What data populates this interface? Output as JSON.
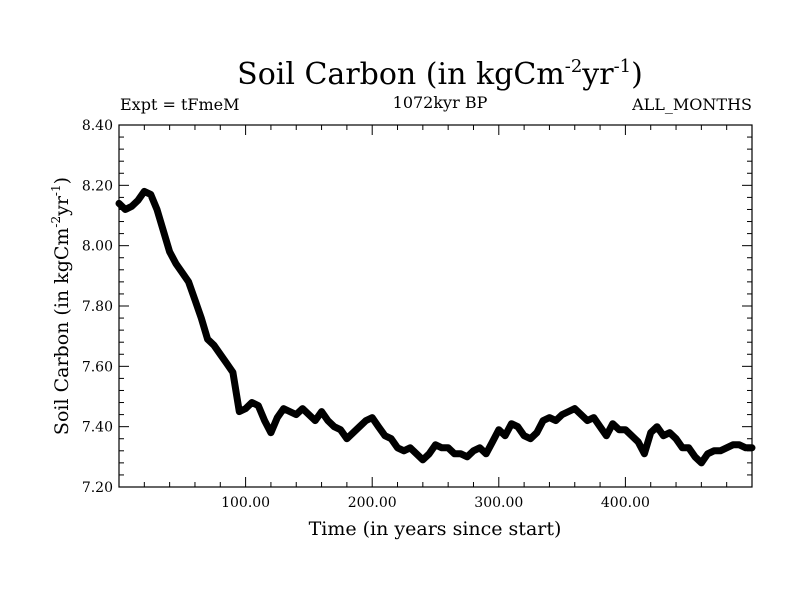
{
  "chart_data": {
    "type": "line",
    "title": "Soil Carbon (in kgCm",
    "title_sup1": "-2",
    "title_mid": "yr",
    "title_sup2": "-1",
    "title_end": ")",
    "subtitle": "1072kyr BP",
    "left_annotation": "Expt = tFmeM",
    "right_annotation": "ALL_MONTHS",
    "xlabel": "Time (in years since start)",
    "ylabel": "Soil Carbon (in kgCm",
    "ylabel_sup1": "-2",
    "ylabel_mid": "yr",
    "ylabel_sup2": "-1",
    "ylabel_end": ")",
    "xlim": [
      0,
      500
    ],
    "ylim": [
      7.2,
      8.4
    ],
    "x_ticks": [
      100,
      200,
      300,
      400
    ],
    "x_tick_labels": [
      "100.00",
      "200.00",
      "300.00",
      "400.00"
    ],
    "y_ticks": [
      7.2,
      7.4,
      7.6,
      7.8,
      8.0,
      8.2,
      8.4
    ],
    "y_tick_labels": [
      "7.20",
      "7.40",
      "7.60",
      "7.80",
      "8.00",
      "8.20",
      "8.40"
    ],
    "line_color": "#000000",
    "series": [
      {
        "name": "Soil Carbon",
        "x": [
          0,
          5,
          10,
          15,
          20,
          25,
          30,
          35,
          40,
          45,
          50,
          55,
          60,
          65,
          70,
          75,
          80,
          85,
          90,
          95,
          100,
          105,
          110,
          115,
          120,
          125,
          130,
          135,
          140,
          145,
          150,
          155,
          160,
          165,
          170,
          175,
          180,
          185,
          190,
          195,
          200,
          205,
          210,
          215,
          220,
          225,
          230,
          235,
          240,
          245,
          250,
          255,
          260,
          265,
          270,
          275,
          280,
          285,
          290,
          295,
          300,
          305,
          310,
          315,
          320,
          325,
          330,
          335,
          340,
          345,
          350,
          355,
          360,
          365,
          370,
          375,
          380,
          385,
          390,
          395,
          400,
          405,
          410,
          415,
          420,
          425,
          430,
          435,
          440,
          445,
          450,
          455,
          460,
          465,
          470,
          475,
          480,
          485,
          490,
          495,
          500
        ],
        "values": [
          8.14,
          8.12,
          8.13,
          8.15,
          8.18,
          8.17,
          8.12,
          8.05,
          7.98,
          7.94,
          7.91,
          7.88,
          7.82,
          7.76,
          7.69,
          7.67,
          7.64,
          7.61,
          7.58,
          7.45,
          7.46,
          7.48,
          7.47,
          7.42,
          7.38,
          7.43,
          7.46,
          7.45,
          7.44,
          7.46,
          7.44,
          7.42,
          7.45,
          7.42,
          7.4,
          7.39,
          7.36,
          7.38,
          7.4,
          7.42,
          7.43,
          7.4,
          7.37,
          7.36,
          7.33,
          7.32,
          7.33,
          7.31,
          7.29,
          7.31,
          7.34,
          7.33,
          7.33,
          7.31,
          7.31,
          7.3,
          7.32,
          7.33,
          7.31,
          7.35,
          7.39,
          7.37,
          7.41,
          7.4,
          7.37,
          7.36,
          7.38,
          7.42,
          7.43,
          7.42,
          7.44,
          7.45,
          7.46,
          7.44,
          7.42,
          7.43,
          7.4,
          7.37,
          7.41,
          7.39,
          7.39,
          7.37,
          7.35,
          7.31,
          7.38,
          7.4,
          7.37,
          7.38,
          7.36,
          7.33,
          7.33,
          7.3,
          7.28,
          7.31,
          7.32,
          7.32,
          7.33,
          7.34,
          7.34,
          7.33,
          7.33
        ]
      }
    ]
  }
}
